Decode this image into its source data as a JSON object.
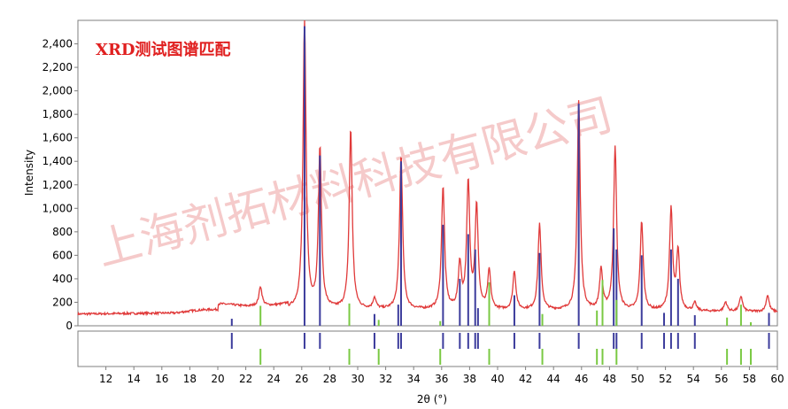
{
  "chart_data": {
    "type": "line",
    "title": "XRD测试图谱匹配",
    "watermark": "上海剂拓材料科技有限公司",
    "xlabel": "2θ (°)",
    "ylabel": "Intensity",
    "xlim": [
      10,
      60
    ],
    "ylim": [
      0,
      2600
    ],
    "x_ticks": [
      "12",
      "14",
      "16",
      "18",
      "20",
      "22",
      "24",
      "26",
      "28",
      "30",
      "32",
      "34",
      "36",
      "38",
      "40",
      "42",
      "44",
      "46",
      "48",
      "50",
      "52",
      "54",
      "56",
      "58",
      "60"
    ],
    "y_ticks": [
      "0",
      "200",
      "400",
      "600",
      "800",
      "1,000",
      "1,200",
      "1,400",
      "1,600",
      "1,800",
      "2,000",
      "2,200",
      "2,400"
    ],
    "grid": false,
    "colors": {
      "pattern": "#e03a3a",
      "phase_blue": "#3c3c9c",
      "phase_green": "#7ac943",
      "title": "#e02020",
      "watermark": "#f2b8b8",
      "axis": "#7f7f7f"
    },
    "peaks": [
      {
        "x": 23.05,
        "y": 330
      },
      {
        "x": 26.2,
        "y": 2590
      },
      {
        "x": 27.3,
        "y": 1500
      },
      {
        "x": 29.5,
        "y": 1670
      },
      {
        "x": 31.2,
        "y": 230
      },
      {
        "x": 33.1,
        "y": 1450
      },
      {
        "x": 36.1,
        "y": 1180
      },
      {
        "x": 37.3,
        "y": 510
      },
      {
        "x": 37.9,
        "y": 1200
      },
      {
        "x": 38.5,
        "y": 1010
      },
      {
        "x": 39.4,
        "y": 460
      },
      {
        "x": 41.2,
        "y": 460
      },
      {
        "x": 43.0,
        "y": 860
      },
      {
        "x": 45.8,
        "y": 1910
      },
      {
        "x": 47.4,
        "y": 470
      },
      {
        "x": 48.4,
        "y": 1510
      },
      {
        "x": 50.3,
        "y": 880
      },
      {
        "x": 52.4,
        "y": 980
      },
      {
        "x": 52.9,
        "y": 620
      },
      {
        "x": 54.1,
        "y": 190
      },
      {
        "x": 56.3,
        "y": 200
      },
      {
        "x": 57.4,
        "y": 250
      },
      {
        "x": 59.3,
        "y": 260
      }
    ],
    "series": [
      {
        "marker": "stick",
        "color": "#3c3c9c",
        "x": [
          21.0,
          26.2,
          27.3,
          31.2,
          32.9,
          33.1,
          36.1,
          37.3,
          37.9,
          38.4,
          38.6,
          41.2,
          43.0,
          45.8,
          48.3,
          48.5,
          50.3,
          51.9,
          52.4,
          52.9,
          54.1,
          59.4
        ],
        "values": [
          60,
          2550,
          1450,
          100,
          180,
          1400,
          860,
          400,
          780,
          650,
          150,
          260,
          620,
          1890,
          830,
          650,
          600,
          110,
          650,
          400,
          90,
          110
        ]
      },
      {
        "marker": "stick",
        "color": "#7ac943",
        "x": [
          23.05,
          29.4,
          31.5,
          35.9,
          39.4,
          43.2,
          47.1,
          47.5,
          48.5,
          56.4,
          57.4,
          58.1
        ],
        "values": [
          170,
          190,
          50,
          40,
          370,
          100,
          130,
          390,
          220,
          70,
          180,
          30
        ]
      }
    ]
  }
}
